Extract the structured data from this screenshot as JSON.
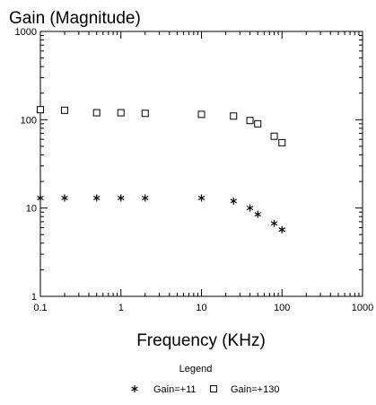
{
  "chart_data": {
    "type": "scatter",
    "title": "Gain (Magnitude)",
    "xlabel": "Frequency (KHz)",
    "ylabel": "",
    "x_scale": "log",
    "y_scale": "log",
    "xlim": [
      0.1,
      1000
    ],
    "ylim": [
      1,
      1000
    ],
    "x_ticks": [
      "0.1",
      "1",
      "10",
      "100",
      "1000"
    ],
    "y_ticks": [
      "1",
      "10",
      "100",
      "1000"
    ],
    "grid": false,
    "legend": {
      "title": "Legend",
      "placement": "bottom"
    },
    "series": [
      {
        "name": "Gain=+11",
        "marker": "asterisk",
        "x": [
          0.1,
          0.2,
          0.5,
          1,
          2,
          10,
          25,
          40,
          50,
          80,
          100
        ],
        "y": [
          13,
          13,
          13,
          13,
          13,
          13,
          12,
          10,
          8.5,
          6.7,
          5.7
        ]
      },
      {
        "name": "Gain=+130",
        "marker": "square",
        "x": [
          0.1,
          0.2,
          0.5,
          1,
          2,
          10,
          25,
          40,
          50,
          80,
          100
        ],
        "y": [
          130,
          128,
          120,
          120,
          118,
          115,
          110,
          98,
          90,
          65,
          55
        ]
      }
    ]
  }
}
